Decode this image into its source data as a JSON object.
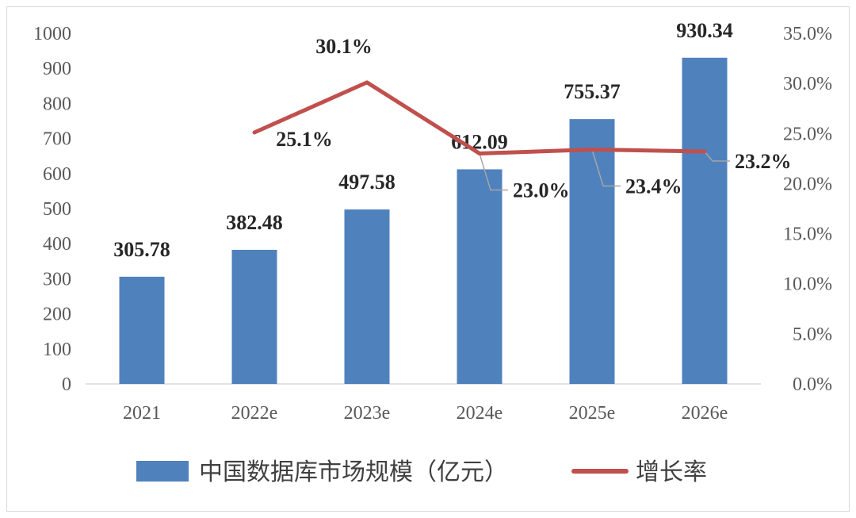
{
  "chart_data": {
    "type": "bar",
    "categories": [
      "2021",
      "2022e",
      "2023e",
      "2024e",
      "2025e",
      "2026e"
    ],
    "series": [
      {
        "name": "中国数据库市场规模（亿元）",
        "type": "bar",
        "axis": "left",
        "values": [
          305.78,
          382.48,
          497.58,
          612.09,
          755.37,
          930.34
        ],
        "labels": [
          "305.78",
          "382.48",
          "497.58",
          "612.09",
          "755.37",
          "930.34"
        ]
      },
      {
        "name": "增长率",
        "type": "line",
        "axis": "right",
        "values": [
          null,
          25.1,
          30.1,
          23.0,
          23.4,
          23.2
        ],
        "labels": [
          "",
          "25.1%",
          "30.1%",
          "23.0%",
          "23.4%",
          "23.2%"
        ]
      }
    ],
    "y_left": {
      "lim": [
        0,
        1000
      ],
      "ticks": [
        "0",
        "100",
        "200",
        "300",
        "400",
        "500",
        "600",
        "700",
        "800",
        "900",
        "1000"
      ]
    },
    "y_right": {
      "lim": [
        0,
        35
      ],
      "ticks": [
        "0.0%",
        "5.0%",
        "10.0%",
        "15.0%",
        "20.0%",
        "25.0%",
        "30.0%",
        "35.0%"
      ]
    },
    "grid": false,
    "legend_position": "bottom",
    "colors": {
      "bar": "#4f81bd",
      "line": "#c0504d",
      "leader": "#a6a6a6",
      "axis": "#d9d9d9"
    }
  }
}
